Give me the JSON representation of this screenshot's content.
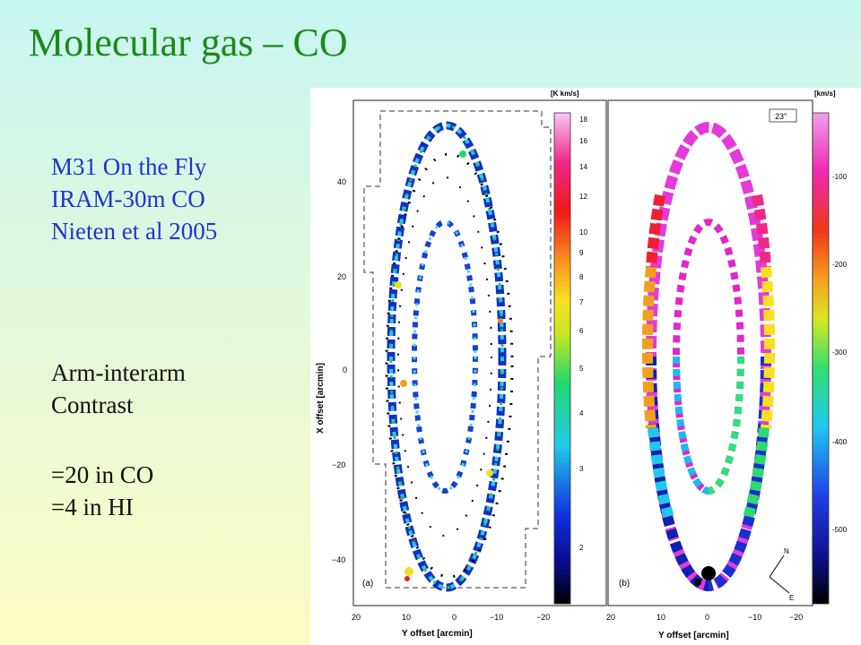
{
  "slide": {
    "title": "Molecular gas – CO",
    "source_lines": [
      "M31 On the Fly",
      "IRAM-30m CO",
      "Nieten et al 2005"
    ],
    "notes_lines": [
      "Arm-interarm",
      "Contrast",
      "",
      "=20 in CO",
      "=4 in HI"
    ]
  },
  "figure": {
    "panel_a": {
      "tag": "(a)",
      "colorbar_unit": "[K km/s]",
      "colorbar_ticks": [
        "18",
        "16",
        "14",
        "12",
        "10",
        "9",
        "8",
        "7",
        "6",
        "5",
        "4",
        "3",
        "2"
      ]
    },
    "panel_b": {
      "tag": "(b)",
      "beam_label": "23\"",
      "colorbar_unit": "[km/s]",
      "colorbar_ticks": [
        "-100",
        "-200",
        "-300",
        "-400",
        "-500"
      ]
    },
    "y_axis_label": "X offset [arcmin]",
    "x_axis_label": "Y offset [arcmin]",
    "y_ticks": [
      "40",
      "20",
      "0",
      "−20",
      "−40"
    ],
    "x_ticks_a": [
      "20",
      "10",
      "0",
      "−10",
      "−20"
    ],
    "x_ticks_b": [
      "20",
      "10",
      "0",
      "−10",
      "−20"
    ],
    "compass": [
      "N",
      "E"
    ]
  }
}
